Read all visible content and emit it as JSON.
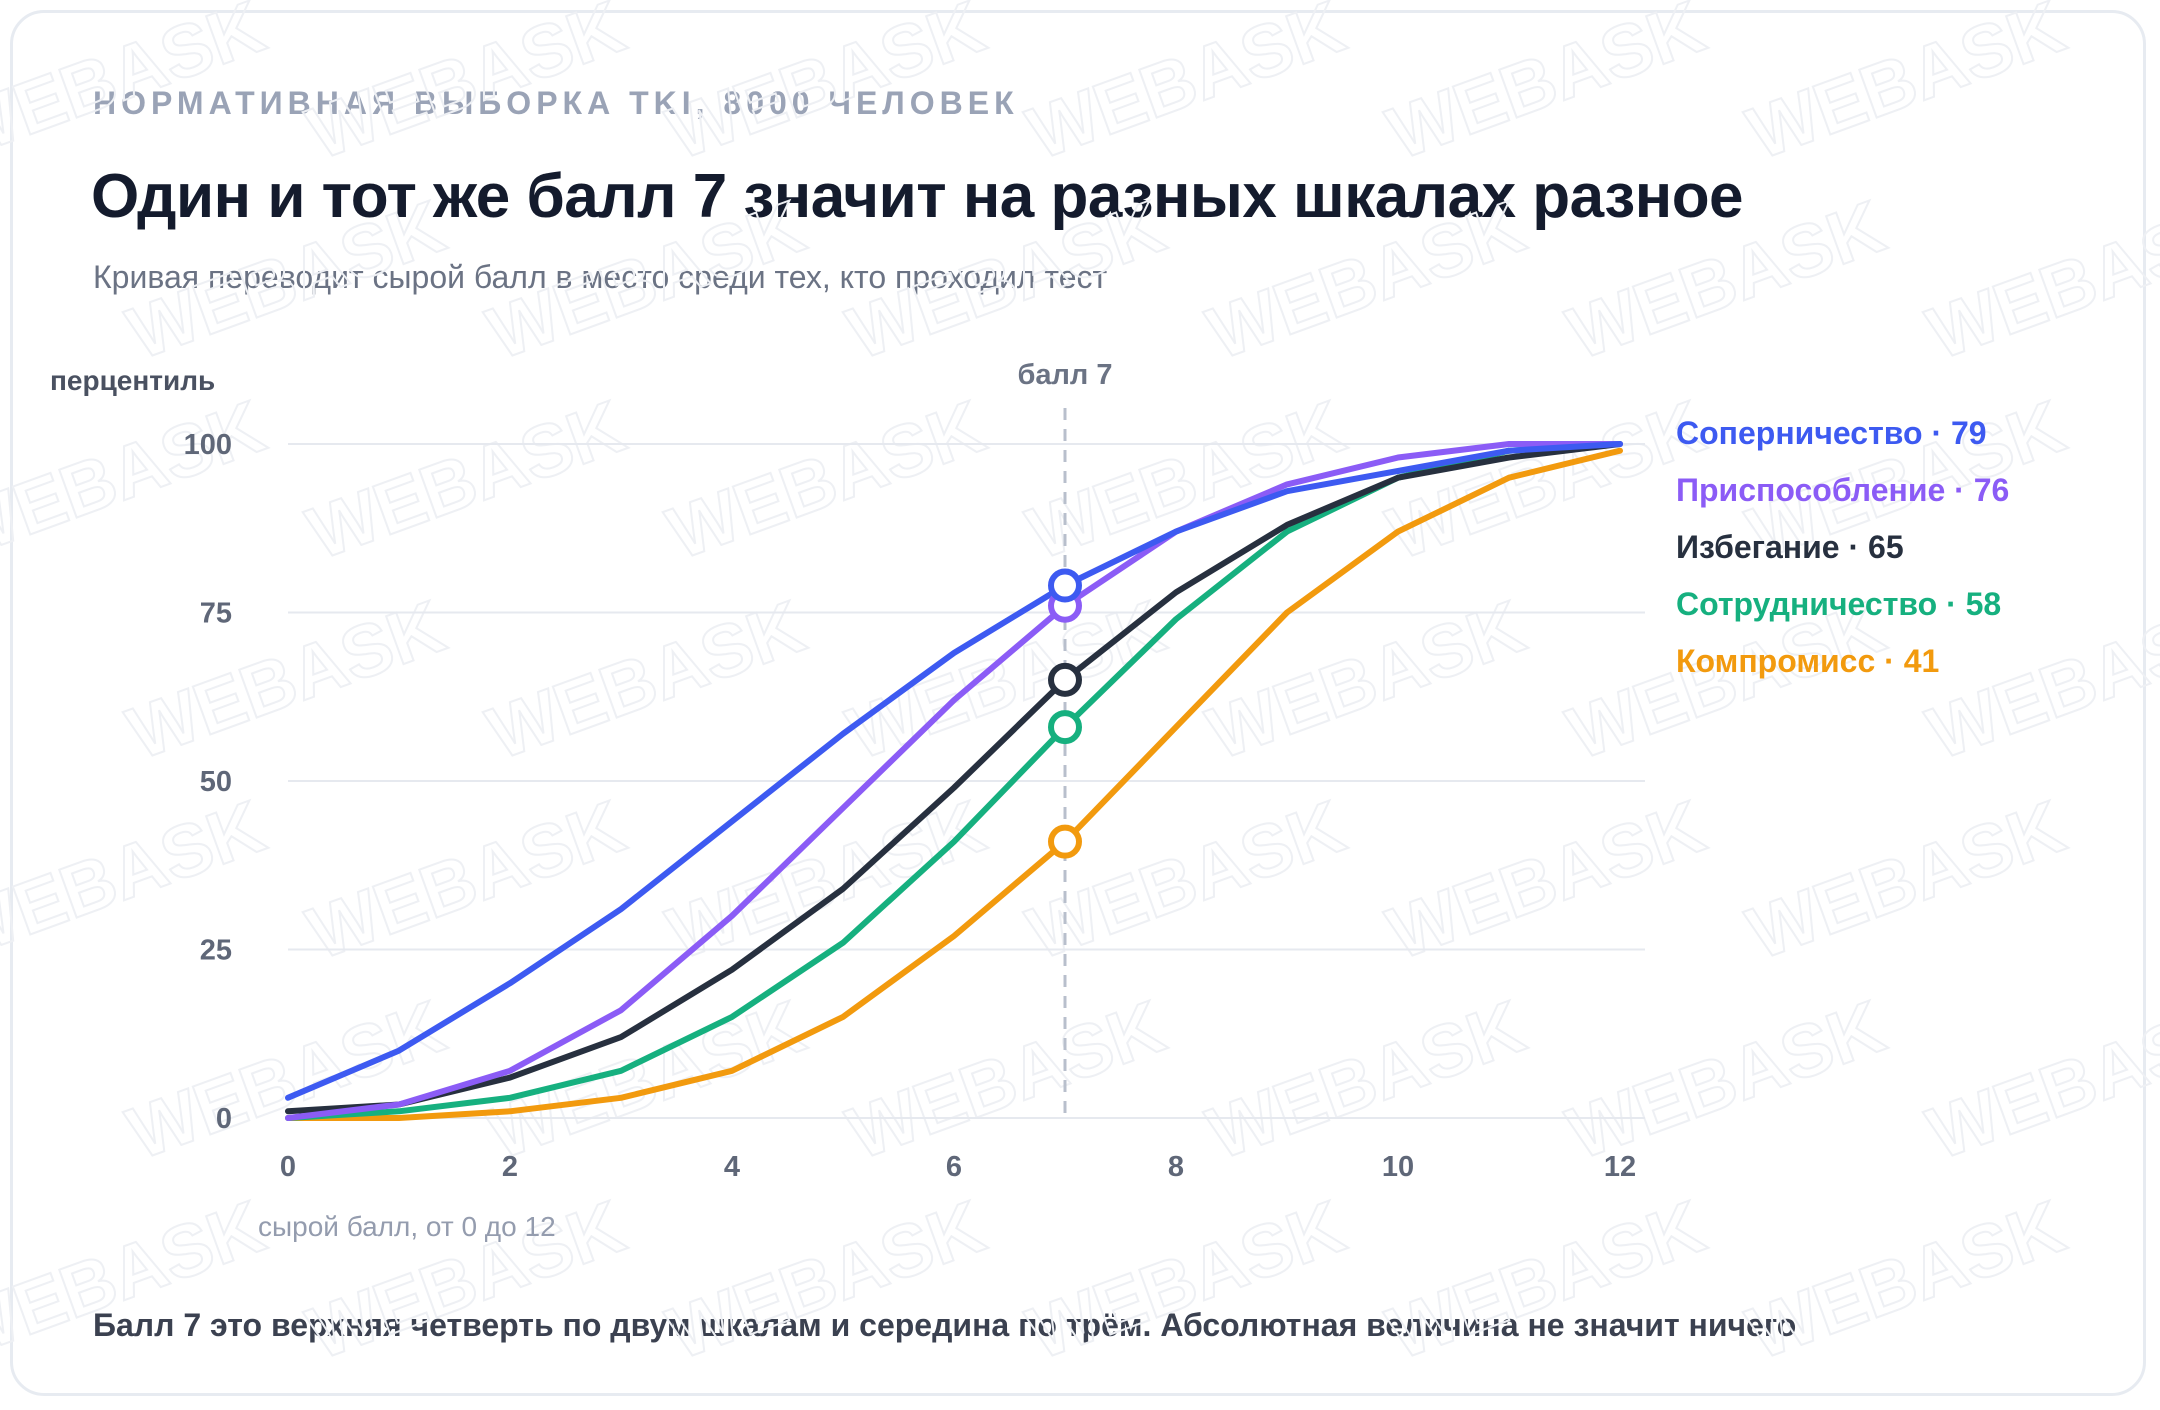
{
  "header": {
    "eyebrow": "НОРМАТИВНАЯ ВЫБОРКА TKI, 8000 ЧЕЛОВЕК",
    "title": "Один и тот же балл 7 значит на разных шкалах разное",
    "subtitle": "Кривая переводит сырой балл в место среди тех, кто проходил тест"
  },
  "footnote": "Балл 7 это верхняя четверть по двум шкалам и середина по трём. Абсолютная величина не значит ничего",
  "watermark": "WEBASK",
  "chart_data": {
    "type": "line",
    "ylabel": "перцентиль",
    "xlabel": "сырой балл, от 0 до 12",
    "xlim": [
      0,
      12
    ],
    "ylim": [
      0,
      100
    ],
    "x_ticks": [
      0,
      2,
      4,
      6,
      8,
      10,
      12
    ],
    "y_ticks": [
      0,
      25,
      50,
      75,
      100
    ],
    "grid": "horizontal",
    "legend_position": "right",
    "reference_line": {
      "x": 7,
      "label": "балл 7"
    },
    "x": [
      0,
      1,
      2,
      3,
      4,
      5,
      6,
      7,
      8,
      9,
      10,
      11,
      12
    ],
    "series": [
      {
        "name": "Соперничество",
        "highlight_label": "Соперничество · 79",
        "color": "#3d5af1",
        "highlight_value": 79,
        "values": [
          3,
          10,
          20,
          31,
          44,
          57,
          69,
          79,
          87,
          93,
          96,
          99,
          100
        ]
      },
      {
        "name": "Приспособление",
        "highlight_label": "Приспособление · 76",
        "color": "#8b5cf6",
        "highlight_value": 76,
        "values": [
          0,
          2,
          7,
          16,
          30,
          46,
          62,
          76,
          87,
          94,
          98,
          100,
          100
        ]
      },
      {
        "name": "Избегание",
        "highlight_label": "Избегание · 65",
        "color": "#27303f",
        "highlight_value": 65,
        "values": [
          1,
          2,
          6,
          12,
          22,
          34,
          49,
          65,
          78,
          88,
          95,
          98,
          100
        ]
      },
      {
        "name": "Сотрудничество",
        "highlight_label": "Сотрудничество · 58",
        "color": "#16b07f",
        "highlight_value": 58,
        "values": [
          0,
          1,
          3,
          7,
          15,
          26,
          41,
          58,
          74,
          87,
          95,
          99,
          100
        ]
      },
      {
        "name": "Компромисс",
        "highlight_label": "Компромисс · 41",
        "color": "#f29a0e",
        "highlight_value": 41,
        "values": [
          0,
          0,
          1,
          3,
          7,
          15,
          27,
          41,
          58,
          75,
          87,
          95,
          99
        ]
      }
    ]
  }
}
